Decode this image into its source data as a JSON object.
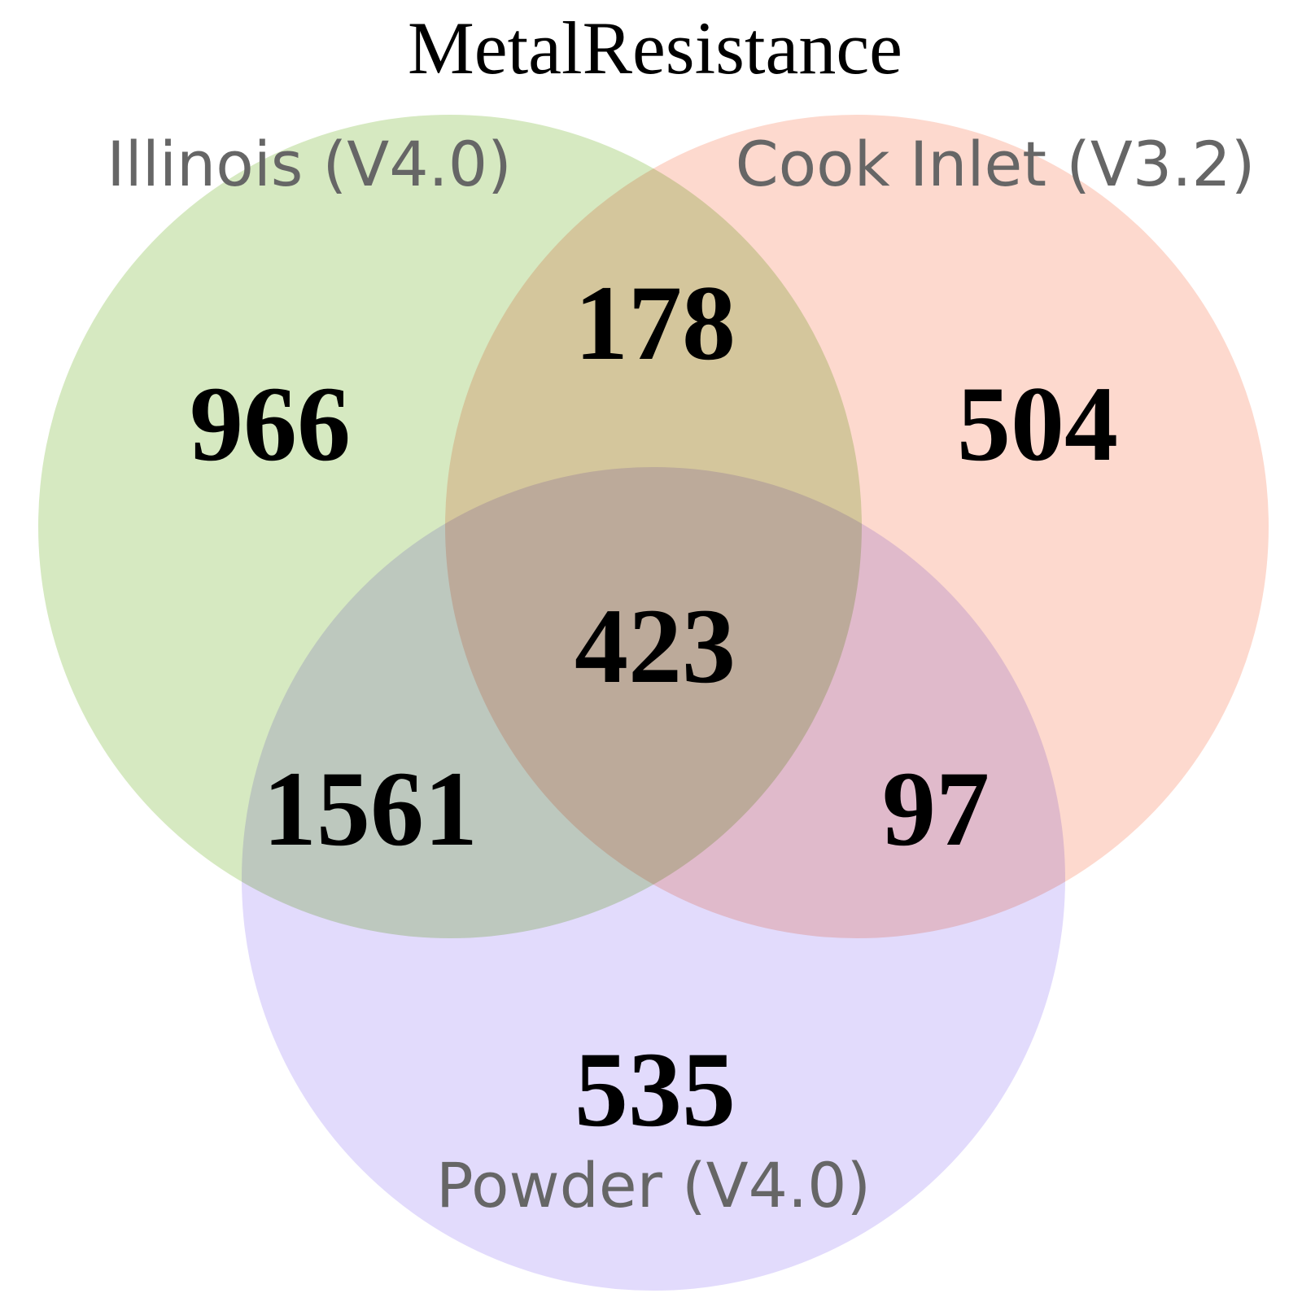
{
  "title": "MetalResistance",
  "sets": [
    {
      "name": "Illinois (V4.0)",
      "color": "#d6e9c1"
    },
    {
      "name": "Cook Inlet (V3.2)",
      "color": "#fdd9ce"
    },
    {
      "name": "Powder (V4.0)",
      "color": "#e2dbfc"
    }
  ],
  "regions": {
    "illinois_only": "966",
    "cook_inlet_only": "504",
    "powder_only": "535",
    "illinois_cook_inlet": "178",
    "illinois_powder": "1561",
    "cook_inlet_powder": "97",
    "all_three": "423"
  }
}
